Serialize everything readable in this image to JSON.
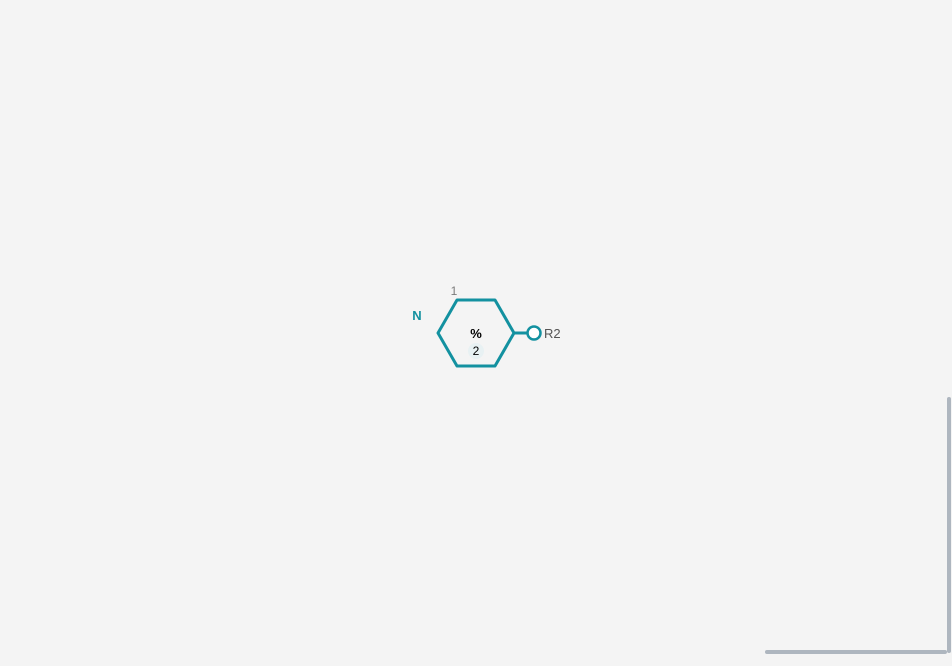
{
  "diagram": {
    "terminal_label": "N",
    "position_label": "1",
    "ring_symbol": "%",
    "ring_index": "2",
    "rgroup_label": "R2"
  },
  "colors": {
    "background": "#f4f4f4",
    "accent": "#1391a0",
    "text": "#000000",
    "muted_text": "#7a7a7a",
    "scrollbar": "#aeb6bf"
  }
}
